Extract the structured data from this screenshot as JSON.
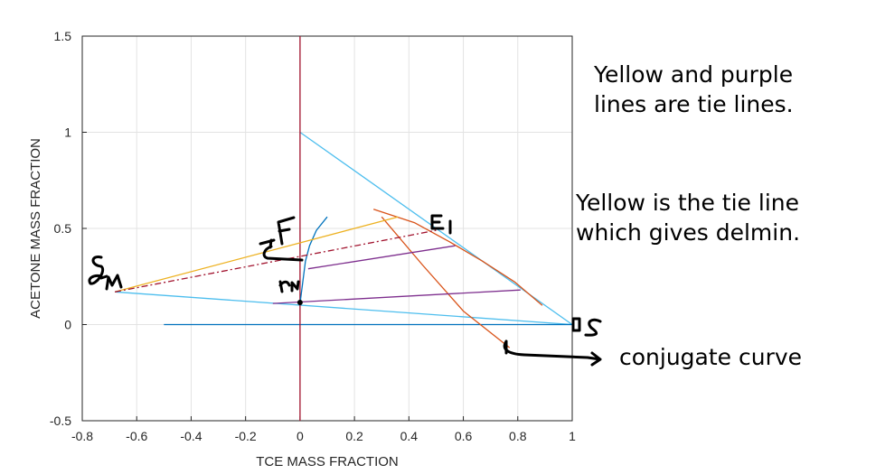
{
  "chart_data": {
    "type": "line",
    "xlabel": "TCE MASS FRACTION",
    "ylabel": "ACETONE MASS FRACTION",
    "xlim": [
      -0.8,
      1
    ],
    "ylim": [
      -0.5,
      1.5
    ],
    "xticks": [
      -0.8,
      -0.6,
      -0.4,
      -0.2,
      0,
      0.2,
      0.4,
      0.6,
      0.8,
      1
    ],
    "yticks": [
      -0.5,
      0,
      0.5,
      1,
      1.5
    ],
    "grid": true,
    "colors": {
      "triangle": "#4dbeee",
      "raffinate_curve": "#0072bd",
      "extract_curve": "#d95319",
      "yellow": "#edb120",
      "purple": "#7e2f8e",
      "axis_line": "#a2142f",
      "ink": "#000000"
    },
    "series": [
      {
        "key": "triangle_upper",
        "color": "#4dbeee",
        "dash": "",
        "x": [
          0,
          1
        ],
        "y": [
          1,
          0
        ]
      },
      {
        "key": "triangle_lower",
        "color": "#4dbeee",
        "dash": "",
        "x": [
          -0.68,
          1
        ],
        "y": [
          0.17,
          0
        ]
      },
      {
        "key": "base_line",
        "color": "#0072bd",
        "dash": "",
        "x": [
          -0.5,
          1
        ],
        "y": [
          0,
          0
        ]
      },
      {
        "key": "vertical_zero",
        "color": "#a2142f",
        "dash": "",
        "x": [
          0,
          0
        ],
        "y": [
          -0.5,
          1.5
        ]
      },
      {
        "key": "raffinate_curve",
        "color": "#0072bd",
        "dash": "",
        "x": [
          0.0,
          0.01,
          0.02,
          0.035,
          0.06,
          0.1
        ],
        "y": [
          0.11,
          0.22,
          0.33,
          0.41,
          0.49,
          0.56
        ]
      },
      {
        "key": "extract_curve",
        "color": "#d95319",
        "dash": "",
        "x": [
          0.27,
          0.42,
          0.55,
          0.67,
          0.79,
          0.89
        ],
        "y": [
          0.6,
          0.53,
          0.43,
          0.33,
          0.22,
          0.1
        ]
      },
      {
        "key": "conjugate_curve",
        "color": "#d95319",
        "dash": "",
        "x": [
          0.3,
          0.45,
          0.6,
          0.77
        ],
        "y": [
          0.56,
          0.31,
          0.07,
          -0.12
        ]
      },
      {
        "key": "tie_line_yellow_delmin",
        "color": "#edb120",
        "dash": "",
        "x": [
          -0.68,
          0.36
        ],
        "y": [
          0.17,
          0.56
        ]
      },
      {
        "key": "operating_line",
        "color": "#a2142f",
        "dash": "7,3,2,3",
        "x": [
          -0.68,
          0.5
        ],
        "y": [
          0.17,
          0.49
        ]
      },
      {
        "key": "tie_line_purple_1",
        "color": "#7e2f8e",
        "dash": "",
        "x": [
          0.03,
          0.57
        ],
        "y": [
          0.29,
          0.41
        ]
      },
      {
        "key": "tie_line_purple_2",
        "color": "#7e2f8e",
        "dash": "",
        "x": [
          -0.1,
          0.81
        ],
        "y": [
          0.11,
          0.18
        ]
      }
    ],
    "points": [
      {
        "key": "point_rn",
        "x": 0.0,
        "y": 0.115
      }
    ]
  },
  "annotations": {
    "tie_lines_note": "Yellow and purple\nlines are tie lines.",
    "delmin_note": "Yellow is the tie line\nwhich gives delmin.",
    "conjugate_label": "conjugate curve"
  }
}
